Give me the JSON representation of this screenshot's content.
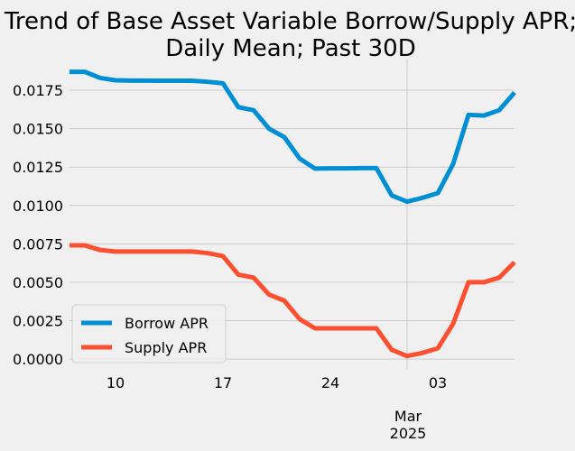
{
  "chart_data": {
    "type": "line",
    "title_lines": [
      "Trend of Base Asset Variable Borrow/Supply APR;",
      "Daily Mean; Past 30D"
    ],
    "xlabel": "",
    "ylabel": "",
    "x": [
      "2025-02-07",
      "2025-02-08",
      "2025-02-09",
      "2025-02-10",
      "2025-02-11",
      "2025-02-12",
      "2025-02-13",
      "2025-02-14",
      "2025-02-15",
      "2025-02-16",
      "2025-02-17",
      "2025-02-18",
      "2025-02-19",
      "2025-02-20",
      "2025-02-21",
      "2025-02-22",
      "2025-02-23",
      "2025-02-24",
      "2025-02-25",
      "2025-02-26",
      "2025-02-27",
      "2025-02-28",
      "2025-03-01",
      "2025-03-02",
      "2025-03-03",
      "2025-03-04",
      "2025-03-05",
      "2025-03-06",
      "2025-03-07",
      "2025-03-08"
    ],
    "xlim": [
      "2025-02-07",
      "2025-03-08"
    ],
    "x_ticks": [
      {
        "date": "2025-02-10",
        "label": "10"
      },
      {
        "date": "2025-02-17",
        "label": "17"
      },
      {
        "date": "2025-02-24",
        "label": "24"
      },
      {
        "date": "2025-03-03",
        "label": "03"
      }
    ],
    "x_secondary_label": {
      "date": "2025-03-01",
      "lines": [
        "Mar",
        "2025"
      ]
    },
    "ylim": [
      -0.0007,
      0.0195
    ],
    "y_ticks": [
      "0.0000",
      "0.0025",
      "0.0050",
      "0.0075",
      "0.0100",
      "0.0125",
      "0.0150",
      "0.0175"
    ],
    "grid": true,
    "legend_position": "lower-left",
    "series": [
      {
        "name": "Borrow APR",
        "color": "#008fd5",
        "values": [
          0.0187,
          0.0187,
          0.0183,
          0.01815,
          0.01813,
          0.01813,
          0.01812,
          0.01812,
          0.01812,
          0.01805,
          0.01795,
          0.0164,
          0.0162,
          0.015,
          0.01445,
          0.01305,
          0.0124,
          0.01242,
          0.01242,
          0.01243,
          0.01243,
          0.01065,
          0.01025,
          0.0105,
          0.0108,
          0.0127,
          0.0159,
          0.01585,
          0.0162,
          0.01735
        ]
      },
      {
        "name": "Supply APR",
        "color": "#fc4f30",
        "values": [
          0.0074,
          0.0074,
          0.0071,
          0.007,
          0.007,
          0.007,
          0.007,
          0.007,
          0.007,
          0.0069,
          0.0067,
          0.0055,
          0.0053,
          0.0042,
          0.0038,
          0.0026,
          0.002,
          0.002,
          0.002,
          0.002,
          0.002,
          0.0006,
          0.0002,
          0.0004,
          0.0007,
          0.0023,
          0.005,
          0.005,
          0.0053,
          0.0063
        ]
      }
    ]
  }
}
